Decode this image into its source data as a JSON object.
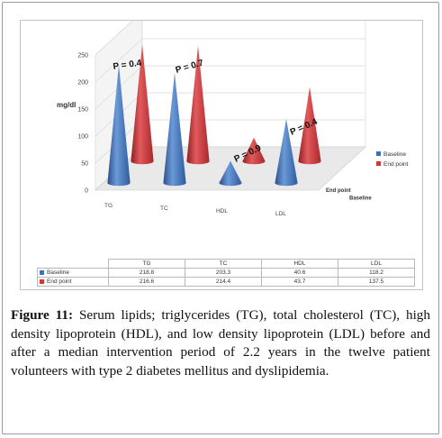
{
  "figure": {
    "label": "Figure 11:",
    "caption": " Serum lipids; triglycerides (TG), total cholesterol (TC), high density lipoprotein (HDL), and low density lipoprotein (LDL) before and after a median intervention period of 2.2 years in the twelve patient volunteers with type 2 diabetes mellitus and dyslipidemia."
  },
  "chart_data": {
    "type": "bar",
    "style": "3d-cone",
    "title": "",
    "xlabel": "",
    "ylabel": "mg/dl",
    "ylim": [
      0,
      250
    ],
    "yticks": [
      "0",
      "50",
      "100",
      "150",
      "200",
      "250"
    ],
    "grid": true,
    "legend_position": "right",
    "categories": [
      "TG",
      "TC",
      "HDL",
      "LDL"
    ],
    "depth_labels": [
      "Baseline",
      "End point"
    ],
    "series": [
      {
        "name": "Baseline",
        "color": "#3f6fb8",
        "values": [
          218.8,
          203.3,
          40.6,
          118.2
        ],
        "labels": [
          "218.8",
          "203.3",
          "40.6",
          "118.2"
        ]
      },
      {
        "name": "End point",
        "color": "#cc3a3c",
        "values": [
          216.6,
          214.4,
          43.7,
          137.5
        ],
        "labels": [
          "216.6",
          "214.4",
          "43.7",
          "137.5"
        ]
      }
    ],
    "annotations": [
      "P = 0.4",
      "P = 0.7",
      "P = 0.9",
      "P = 0.4"
    ]
  }
}
